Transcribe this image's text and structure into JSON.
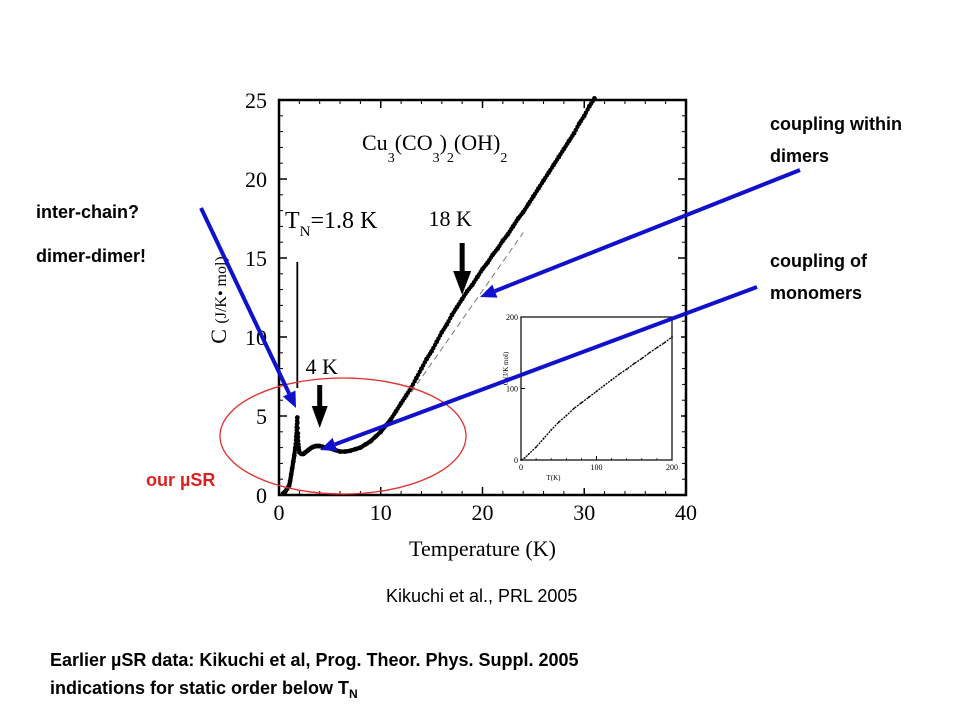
{
  "annotations": {
    "coupling_within_1": "coupling within",
    "coupling_within_2": "dimers",
    "coupling_of_1": "coupling of",
    "coupling_of_2": "monomers",
    "inter_chain": "inter-chain?",
    "dimer_dimer": "dimer-dimer!",
    "our_musr": "our µSR",
    "citation": "Kikuchi et al., PRL 2005",
    "footer_line1": "Earlier µSR data: Kikuchi et al, Prog. Theor. Phys. Suppl. 2005",
    "footer_line2_prefix": "indications for static order below T",
    "footer_line2_sub": "N"
  },
  "colors": {
    "arrow_blue": "#1111cc",
    "ellipse_red": "#e03030",
    "label_red": "#e02020"
  },
  "chart_data": [
    {
      "type": "scatter",
      "title_parts": {
        "cu": "Cu",
        "s3a": "3",
        "co": "(CO",
        "s3b": "3",
        "s2": ")",
        "sub2": "2",
        "oh": "(OH)",
        "sub2b": "2"
      },
      "xlabel": "Temperature (K)",
      "ylabel_parts": {
        "c": "C",
        "unit": "(J/K• mol)"
      },
      "xlim": [
        0,
        40
      ],
      "ylim": [
        0,
        25
      ],
      "xticks": [
        "0",
        "10",
        "20",
        "30",
        "40"
      ],
      "yticks": [
        "0",
        "5",
        "10",
        "15",
        "20",
        "25"
      ],
      "markers": [
        {
          "label_prefix": "T",
          "label_sub": "N",
          "label_rest": "=1.8 K",
          "x": 1.8
        },
        {
          "label": "4 K",
          "x": 4
        },
        {
          "label": "18 K",
          "x": 18
        }
      ],
      "points": [
        [
          0.4,
          0.1
        ],
        [
          0.6,
          0.2
        ],
        [
          0.8,
          0.4
        ],
        [
          1.0,
          0.6
        ],
        [
          1.1,
          0.9
        ],
        [
          1.2,
          1.3
        ],
        [
          1.3,
          1.7
        ],
        [
          1.4,
          2.1
        ],
        [
          1.5,
          2.5
        ],
        [
          1.6,
          3.0
        ],
        [
          1.7,
          3.7
        ],
        [
          1.75,
          4.3
        ],
        [
          1.8,
          4.9
        ],
        [
          1.85,
          3.9
        ],
        [
          1.9,
          3.2
        ],
        [
          2.0,
          2.7
        ],
        [
          2.2,
          2.6
        ],
        [
          2.4,
          2.6
        ],
        [
          2.6,
          2.7
        ],
        [
          2.8,
          2.8
        ],
        [
          3.0,
          2.9
        ],
        [
          3.2,
          3.0
        ],
        [
          3.4,
          3.05
        ],
        [
          3.6,
          3.1
        ],
        [
          3.8,
          3.1
        ],
        [
          4.0,
          3.1
        ],
        [
          4.3,
          3.05
        ],
        [
          4.6,
          3.0
        ],
        [
          5.0,
          2.95
        ],
        [
          5.5,
          2.85
        ],
        [
          6.0,
          2.75
        ],
        [
          6.5,
          2.75
        ],
        [
          7.0,
          2.8
        ],
        [
          7.5,
          2.9
        ],
        [
          8.0,
          3.0
        ],
        [
          8.5,
          3.2
        ],
        [
          9.0,
          3.4
        ],
        [
          9.5,
          3.7
        ],
        [
          10.0,
          4.0
        ],
        [
          10.5,
          4.4
        ],
        [
          11.0,
          4.8
        ],
        [
          11.5,
          5.3
        ],
        [
          12.0,
          5.8
        ],
        [
          12.5,
          6.3
        ],
        [
          13.0,
          6.8
        ],
        [
          13.5,
          7.4
        ],
        [
          14.0,
          8.0
        ],
        [
          14.5,
          8.6
        ],
        [
          15.0,
          9.1
        ],
        [
          15.5,
          9.7
        ],
        [
          16.0,
          10.3
        ],
        [
          16.5,
          10.8
        ],
        [
          17.0,
          11.4
        ],
        [
          17.5,
          11.9
        ],
        [
          18.0,
          12.4
        ],
        [
          18.5,
          12.9
        ],
        [
          19.0,
          13.3
        ],
        [
          19.5,
          13.8
        ],
        [
          20.0,
          14.3
        ],
        [
          20.5,
          14.7
        ],
        [
          21.0,
          15.2
        ],
        [
          21.5,
          15.6
        ],
        [
          22.0,
          16.1
        ],
        [
          22.5,
          16.5
        ],
        [
          23.0,
          17.0
        ],
        [
          23.5,
          17.5
        ],
        [
          24.0,
          17.9
        ],
        [
          24.5,
          18.4
        ],
        [
          25.0,
          18.9
        ],
        [
          25.5,
          19.4
        ],
        [
          26.0,
          19.9
        ],
        [
          26.5,
          20.4
        ],
        [
          27.0,
          20.9
        ],
        [
          27.5,
          21.4
        ],
        [
          28.0,
          21.9
        ],
        [
          28.5,
          22.4
        ],
        [
          29.0,
          22.9
        ],
        [
          29.5,
          23.5
        ],
        [
          30.0,
          24.0
        ],
        [
          30.5,
          24.6
        ],
        [
          31.0,
          25.1
        ]
      ],
      "dashed_line": [
        [
          13,
          6.5
        ],
        [
          24,
          16.6
        ]
      ]
    },
    {
      "type": "line",
      "xlabel": "T(K)",
      "ylabel": "C (J/K mol)",
      "xlim": [
        0,
        200
      ],
      "ylim": [
        0,
        200
      ],
      "xticks": [
        "0",
        "100",
        "200"
      ],
      "yticks": [
        "0",
        "100",
        "200"
      ],
      "points": [
        [
          0,
          0
        ],
        [
          5,
          3
        ],
        [
          10,
          8
        ],
        [
          20,
          18
        ],
        [
          30,
          30
        ],
        [
          40,
          42
        ],
        [
          50,
          53
        ],
        [
          60,
          62
        ],
        [
          70,
          72
        ],
        [
          80,
          80
        ],
        [
          90,
          88
        ],
        [
          100,
          96
        ],
        [
          110,
          104
        ],
        [
          120,
          112
        ],
        [
          130,
          120
        ],
        [
          140,
          127
        ],
        [
          150,
          135
        ],
        [
          160,
          142
        ],
        [
          170,
          150
        ],
        [
          180,
          157
        ],
        [
          190,
          164
        ],
        [
          200,
          172
        ]
      ]
    }
  ]
}
